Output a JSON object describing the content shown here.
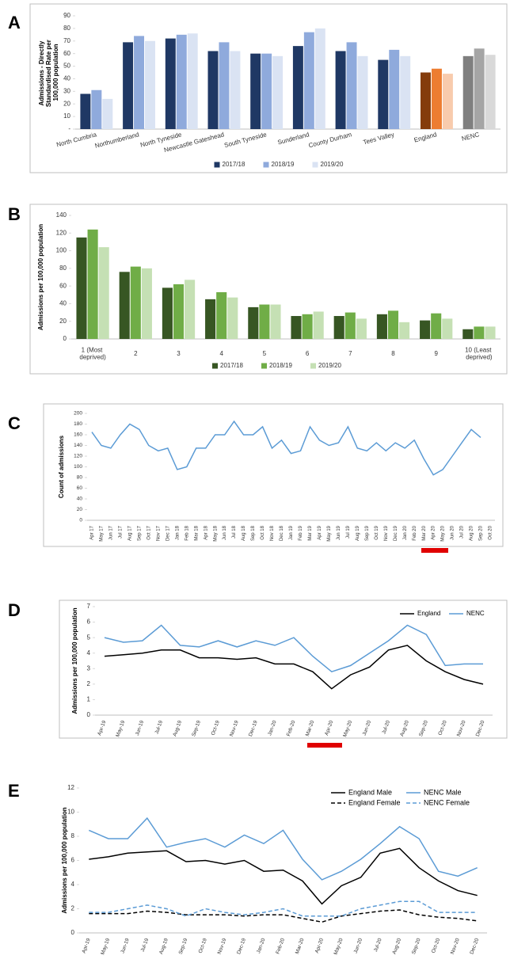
{
  "chart_data": [
    {
      "panel": "A",
      "type": "bar",
      "ylabel": "Admissions - Directly Standardised Rate per 100,000 population",
      "categories": [
        "North Cumbria",
        "Northumberland",
        "North Tyneside",
        "Newcastle Gateshead",
        "South Tyneside",
        "Sunderland",
        "County Durham",
        "Tees Valley",
        "England",
        "NENC"
      ],
      "series": [
        {
          "name": "2017/18",
          "color": "#1f3864",
          "colors": [
            "#1f3864",
            "#1f3864",
            "#1f3864",
            "#1f3864",
            "#1f3864",
            "#1f3864",
            "#1f3864",
            "#1f3864",
            "#843c0c",
            "#7f7f7f"
          ],
          "values": [
            28,
            69,
            72,
            62,
            60,
            66,
            62,
            55,
            45,
            58
          ]
        },
        {
          "name": "2018/19",
          "color": "#8faadc",
          "colors": [
            "#8faadc",
            "#8faadc",
            "#8faadc",
            "#8faadc",
            "#8faadc",
            "#8faadc",
            "#8faadc",
            "#8faadc",
            "#ed7d31",
            "#a5a5a5"
          ],
          "values": [
            31,
            74,
            75,
            69,
            60,
            77,
            69,
            63,
            48,
            64
          ]
        },
        {
          "name": "2019/20",
          "color": "#dae3f3",
          "colors": [
            "#dae3f3",
            "#dae3f3",
            "#dae3f3",
            "#dae3f3",
            "#dae3f3",
            "#dae3f3",
            "#dae3f3",
            "#dae3f3",
            "#f8cbad",
            "#d9d9d9"
          ],
          "values": [
            24,
            70,
            76,
            62,
            58,
            80,
            58,
            58,
            44,
            59
          ]
        }
      ],
      "ylim": [
        0,
        90
      ],
      "yticks": [
        {
          "value": 0,
          "label": "-"
        },
        10,
        20,
        30,
        40,
        50,
        60,
        70,
        80,
        90
      ],
      "grid": false,
      "legend": "bottom"
    },
    {
      "panel": "B",
      "type": "bar",
      "ylabel": "Admissions per 100,000 population",
      "categories": [
        "1 (Most deprived)",
        "2",
        "3",
        "4",
        "5",
        "6",
        "7",
        "8",
        "9",
        "10 (Least deprived)"
      ],
      "series": [
        {
          "name": "2017/18",
          "color": "#375623",
          "values": [
            115,
            76,
            58,
            45,
            36,
            26,
            26,
            28,
            21,
            11
          ]
        },
        {
          "name": "2018/19",
          "color": "#70ad47",
          "values": [
            124,
            82,
            62,
            53,
            39,
            28,
            30,
            32,
            29,
            14
          ]
        },
        {
          "name": "2019/20",
          "color": "#c5e0b4",
          "values": [
            104,
            80,
            67,
            47,
            39,
            31,
            23,
            19,
            23,
            14
          ]
        }
      ],
      "ylim": [
        0,
        140
      ],
      "yticks": [
        0,
        20,
        40,
        60,
        80,
        100,
        120,
        140
      ],
      "grid": false,
      "legend": "bottom"
    },
    {
      "panel": "C",
      "type": "line",
      "ylabel": "Count of admissions",
      "categories": [
        "Apr 17",
        "May 17",
        "Jun 17",
        "Jul 17",
        "Aug 17",
        "Sep 17",
        "Oct 17",
        "Nov 17",
        "Dec 17",
        "Jan 18",
        "Feb 18",
        "Mar 18",
        "Apr 18",
        "May 18",
        "Jun 18",
        "Jul 18",
        "Aug 18",
        "Sep 18",
        "Oct 18",
        "Nov 18",
        "Dec 18",
        "Jan 19",
        "Feb 19",
        "Mar 19",
        "Apr 19",
        "May 19",
        "Jun 19",
        "Jul 19",
        "Aug 19",
        "Sep 19",
        "Oct 19",
        "Nov 19",
        "Dec 19",
        "Jan 20",
        "Feb 20",
        "Mar 20",
        "Apr 20",
        "May 20",
        "Jun 20",
        "Jul 20",
        "Aug 20",
        "Sep 20",
        "Oct 20"
      ],
      "values": [
        165,
        140,
        135,
        160,
        180,
        170,
        140,
        130,
        135,
        95,
        100,
        135,
        135,
        160,
        160,
        185,
        160,
        160,
        175,
        135,
        150,
        125,
        130,
        175,
        150,
        140,
        145,
        175,
        135,
        130,
        145,
        130,
        145,
        135,
        150,
        115,
        85,
        95,
        120,
        145,
        170,
        155,
        null
      ],
      "color": "#5b9bd5",
      "ylim": [
        0,
        200
      ],
      "yticks": [
        0,
        20,
        40,
        60,
        80,
        100,
        120,
        140,
        160,
        180,
        200
      ],
      "grid": false
    },
    {
      "panel": "D",
      "type": "line",
      "ylabel": "Admissions per 100,000 population",
      "categories": [
        "Apr-19",
        "May-19",
        "Jun-19",
        "Jul-19",
        "Aug-19",
        "Sep-19",
        "Oct-19",
        "Nov-19",
        "Dec-19",
        "Jan-20",
        "Feb-20",
        "Mar-20",
        "Apr-20",
        "May-20",
        "Jun-20",
        "Jul-20",
        "Aug-20",
        "Sep-20",
        "Oct-20",
        "Nov-20",
        "Dec-20"
      ],
      "series": [
        {
          "name": "England",
          "color": "#000000",
          "values": [
            3.8,
            3.9,
            4.0,
            4.2,
            4.2,
            3.7,
            3.7,
            3.6,
            3.7,
            3.3,
            3.3,
            2.8,
            1.7,
            2.6,
            3.1,
            4.2,
            4.5,
            3.5,
            2.8,
            2.3,
            2.0
          ]
        },
        {
          "name": "NENC",
          "color": "#5b9bd5",
          "values": [
            5.0,
            4.7,
            4.8,
            5.8,
            4.5,
            4.4,
            4.8,
            4.4,
            4.8,
            4.5,
            5.0,
            3.8,
            2.8,
            3.2,
            4.0,
            4.8,
            5.8,
            5.2,
            3.2,
            3.3,
            3.3
          ]
        }
      ],
      "ylim": [
        0,
        7
      ],
      "yticks": [
        0,
        1,
        2,
        3,
        4,
        5,
        6,
        7
      ],
      "grid": false,
      "legend": "top-right"
    },
    {
      "panel": "E",
      "type": "line",
      "ylabel": "Admissions per 100,000 population",
      "categories": [
        "Apr-19",
        "May-19",
        "Jun-19",
        "Jul-19",
        "Aug-19",
        "Sep-19",
        "Oct-19",
        "Nov-19",
        "Dec-19",
        "Jan-20",
        "Feb-20",
        "Mar-20",
        "Apr-20",
        "May-20",
        "Jun-20",
        "Jul-20",
        "Aug-20",
        "Sep-20",
        "Oct-20",
        "Nov-20",
        "Dec-20"
      ],
      "series": [
        {
          "name": "England Male",
          "color": "#000000",
          "dash": false,
          "values": [
            6.1,
            6.3,
            6.6,
            6.7,
            6.8,
            5.9,
            6.0,
            5.7,
            6.0,
            5.1,
            5.2,
            4.3,
            2.4,
            3.9,
            4.6,
            6.6,
            7.0,
            5.4,
            4.3,
            3.5,
            3.1
          ]
        },
        {
          "name": "England Female",
          "color": "#000000",
          "dash": true,
          "values": [
            1.6,
            1.6,
            1.6,
            1.8,
            1.7,
            1.5,
            1.5,
            1.5,
            1.4,
            1.5,
            1.5,
            1.2,
            0.9,
            1.4,
            1.6,
            1.8,
            1.9,
            1.5,
            1.3,
            1.2,
            1.0
          ]
        },
        {
          "name": "NENC Male",
          "color": "#5b9bd5",
          "dash": false,
          "values": [
            8.5,
            7.8,
            7.8,
            9.5,
            7.1,
            7.5,
            7.8,
            7.1,
            8.1,
            7.4,
            8.5,
            6.1,
            4.4,
            5.1,
            6.1,
            7.4,
            8.8,
            7.8,
            5.1,
            4.7,
            5.4
          ]
        },
        {
          "name": "NENC Female",
          "color": "#5b9bd5",
          "dash": true,
          "values": [
            1.7,
            1.7,
            2.0,
            2.3,
            2.0,
            1.4,
            2.0,
            1.7,
            1.5,
            1.7,
            2.0,
            1.4,
            1.4,
            1.4,
            2.0,
            2.3,
            2.6,
            2.6,
            1.7,
            1.7,
            1.7
          ]
        }
      ],
      "ylim": [
        0,
        12
      ],
      "yticks": [
        0,
        2,
        4,
        6,
        8,
        10,
        12
      ],
      "grid": false,
      "legend": "top-right"
    }
  ]
}
